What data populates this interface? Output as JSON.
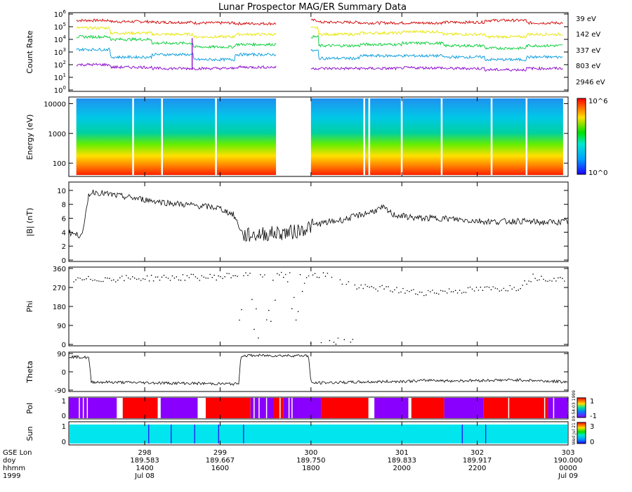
{
  "title": "Lunar Prospector MAG/ER Summary Data",
  "colors": {
    "ch39": "#d00000",
    "ch142": "#e6e600",
    "ch337": "#00cc33",
    "ch803": "#0099dd",
    "ch2946": "#8800cc",
    "cyan": "#00e5ee",
    "red": "#ff0000",
    "violet": "#8a00ff"
  },
  "chart_data": [
    {
      "type": "line",
      "panel": "count_rate",
      "ylabel": "Count Rate",
      "yscale": "log",
      "ylim": [
        1,
        1000000
      ],
      "yticks": [
        "10^0",
        "10^1",
        "10^2",
        "10^3",
        "10^4",
        "10^5",
        "10^6"
      ],
      "gap": [
        0.415,
        0.485
      ],
      "series": [
        {
          "name": "39 eV",
          "label": "39 eV",
          "color": "#d00000",
          "level": [
            5.5,
            5.4,
            5.35,
            5.3,
            5.25,
            5.5,
            5.35,
            5.3,
            5.3,
            5.35,
            5.5,
            5.3
          ]
        },
        {
          "name": "142 eV",
          "label": "142 eV",
          "color": "#e6e600",
          "level": [
            4.9,
            4.5,
            4.4,
            4.2,
            4.4,
            4.9,
            4.4,
            4.5,
            4.6,
            4.4,
            4.2,
            4.4
          ]
        },
        {
          "name": "337 eV",
          "label": "337 eV",
          "color": "#00cc33",
          "level": [
            4.2,
            4.0,
            3.7,
            3.4,
            3.6,
            4.2,
            3.5,
            3.6,
            3.7,
            3.5,
            3.3,
            3.5
          ]
        },
        {
          "name": "803 eV",
          "label": "803 eV",
          "color": "#0099dd",
          "level": [
            3.2,
            2.6,
            2.8,
            2.4,
            2.8,
            3.1,
            2.5,
            2.7,
            2.7,
            2.6,
            2.4,
            2.6
          ]
        },
        {
          "name": "2946 eV",
          "label": "2946 eV",
          "color": "#8800cc",
          "level": [
            2.0,
            1.8,
            1.7,
            1.7,
            1.8,
            1.7,
            1.7,
            1.7,
            1.75,
            1.7,
            1.6,
            1.7
          ]
        }
      ]
    },
    {
      "type": "heatmap",
      "panel": "energy_spectrogram",
      "ylabel": "Energy (eV)",
      "yscale": "log",
      "ylim": [
        40,
        15000
      ],
      "yticks": [
        "100",
        "1000",
        "10000"
      ],
      "colorbar": {
        "min_label": "10^0",
        "max_label": "10^6"
      },
      "gap": [
        0.415,
        0.485
      ]
    },
    {
      "type": "line",
      "panel": "B_magnitude",
      "ylabel": "|B| (nT)",
      "ylim": [
        0,
        11
      ],
      "yticks": [
        "0",
        "2",
        "4",
        "6",
        "8",
        "10"
      ],
      "x": [
        0,
        0.02,
        0.03,
        0.04,
        0.05,
        0.1,
        0.2,
        0.3,
        0.33,
        0.35,
        0.4,
        0.45,
        0.5,
        0.55,
        0.6,
        0.63,
        0.65,
        0.7,
        0.75,
        0.8,
        0.85,
        0.9,
        0.95,
        1.0
      ],
      "values": [
        4,
        3.5,
        4.5,
        9.5,
        9.8,
        9.2,
        8.2,
        7.5,
        6.5,
        3.5,
        3.8,
        4.0,
        5.2,
        5.8,
        6.8,
        7.5,
        6.5,
        6.0,
        6.0,
        5.7,
        5.5,
        5.6,
        5.4,
        5.5
      ]
    },
    {
      "type": "scatter",
      "panel": "phi",
      "ylabel": "Phi",
      "ylim": [
        0,
        360
      ],
      "yticks": [
        "0",
        "90",
        "180",
        "270",
        "360"
      ]
    },
    {
      "type": "line",
      "panel": "theta",
      "ylabel": "Theta",
      "ylim": [
        -90,
        90
      ],
      "yticks": [
        "-90",
        "0",
        "90"
      ],
      "x": [
        0,
        0.04,
        0.045,
        0.34,
        0.345,
        0.48,
        0.485,
        0.6,
        0.7,
        0.73,
        0.75,
        0.9,
        1.0
      ],
      "values": [
        75,
        70,
        -50,
        -60,
        80,
        80,
        -55,
        -50,
        -45,
        -40,
        -45,
        -40,
        -50
      ]
    },
    {
      "type": "bar",
      "panel": "polarity",
      "ylabel": "Pol",
      "colorbar": {
        "max_label": "1",
        "min_label": "-1"
      },
      "segments": [
        {
          "x0": 0.0,
          "x1": 0.096,
          "c": "violet"
        },
        {
          "x0": 0.108,
          "x1": 0.178,
          "c": "red"
        },
        {
          "x0": 0.184,
          "x1": 0.258,
          "c": "violet"
        },
        {
          "x0": 0.274,
          "x1": 0.364,
          "c": "red"
        },
        {
          "x0": 0.364,
          "x1": 0.41,
          "c": "violet"
        },
        {
          "x0": 0.41,
          "x1": 0.43,
          "c": "red"
        },
        {
          "x0": 0.43,
          "x1": 0.505,
          "c": "violet"
        },
        {
          "x0": 0.505,
          "x1": 0.6,
          "c": "red"
        },
        {
          "x0": 0.612,
          "x1": 0.68,
          "c": "violet"
        },
        {
          "x0": 0.686,
          "x1": 0.752,
          "c": "red"
        },
        {
          "x0": 0.752,
          "x1": 0.83,
          "c": "violet"
        },
        {
          "x0": 0.83,
          "x1": 0.96,
          "c": "red"
        },
        {
          "x0": 0.96,
          "x1": 1.0,
          "c": "violet"
        }
      ]
    },
    {
      "type": "bar",
      "panel": "sun",
      "ylabel": "Sun",
      "colorbar": {
        "max_label": "3",
        "min_label": "0"
      },
      "fill": "cyan",
      "lines": [
        0.16,
        0.205,
        0.252,
        0.3,
        0.35,
        0.788,
        0.835
      ]
    }
  ],
  "axes_labels": {
    "rows": [
      "GSE Lon",
      "doy",
      "hhmm",
      "1999"
    ],
    "ticks": [
      {
        "lon": "298",
        "doy": "189.583",
        "hhmm": "1400",
        "date": "Jul 08"
      },
      {
        "lon": "299",
        "doy": "189.667",
        "hhmm": "1600",
        "date": ""
      },
      {
        "lon": "300",
        "doy": "189.750",
        "hhmm": "1800",
        "date": ""
      },
      {
        "lon": "301",
        "doy": "189.833",
        "hhmm": "2000",
        "date": ""
      },
      {
        "lon": "302",
        "doy": "189.917",
        "hhmm": "2200",
        "date": ""
      },
      {
        "lon": "303",
        "doy": "190.000",
        "hhmm": "0000",
        "date": "Jul 09"
      }
    ]
  },
  "stamp": "Wed Jul 21 09:54:03 1999"
}
